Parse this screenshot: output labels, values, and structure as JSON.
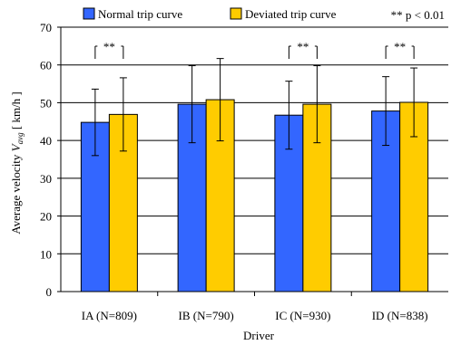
{
  "chart_data": {
    "type": "bar",
    "title": "",
    "xlabel": "Driver",
    "ylabel_prefix": "Average velocity ",
    "ylabel_var": "V",
    "ylabel_sub": "avg",
    "ylabel_unit": " [ km/h ]",
    "categories": [
      "IA (N=809)",
      "IB (N=790)",
      "IC (N=930)",
      "ID (N=838)"
    ],
    "ylim": [
      0,
      70
    ],
    "yticks": [
      0,
      10,
      20,
      30,
      40,
      50,
      60,
      70
    ],
    "grid": true,
    "legend_position": "top",
    "significance_note": "** p < 0.01",
    "significance_marker": "**",
    "series": [
      {
        "name": "Normal trip curve",
        "color": "#3366ff",
        "values": [
          44.8,
          49.6,
          46.7,
          47.8
        ],
        "error": [
          8.8,
          10.2,
          9.0,
          9.1
        ]
      },
      {
        "name": "Deviated trip curve",
        "color": "#ffcc00",
        "values": [
          46.9,
          50.8,
          49.6,
          50.1
        ],
        "error": [
          9.7,
          10.9,
          10.2,
          9.1
        ]
      }
    ],
    "significance_pairs": [
      0,
      2,
      3
    ]
  }
}
